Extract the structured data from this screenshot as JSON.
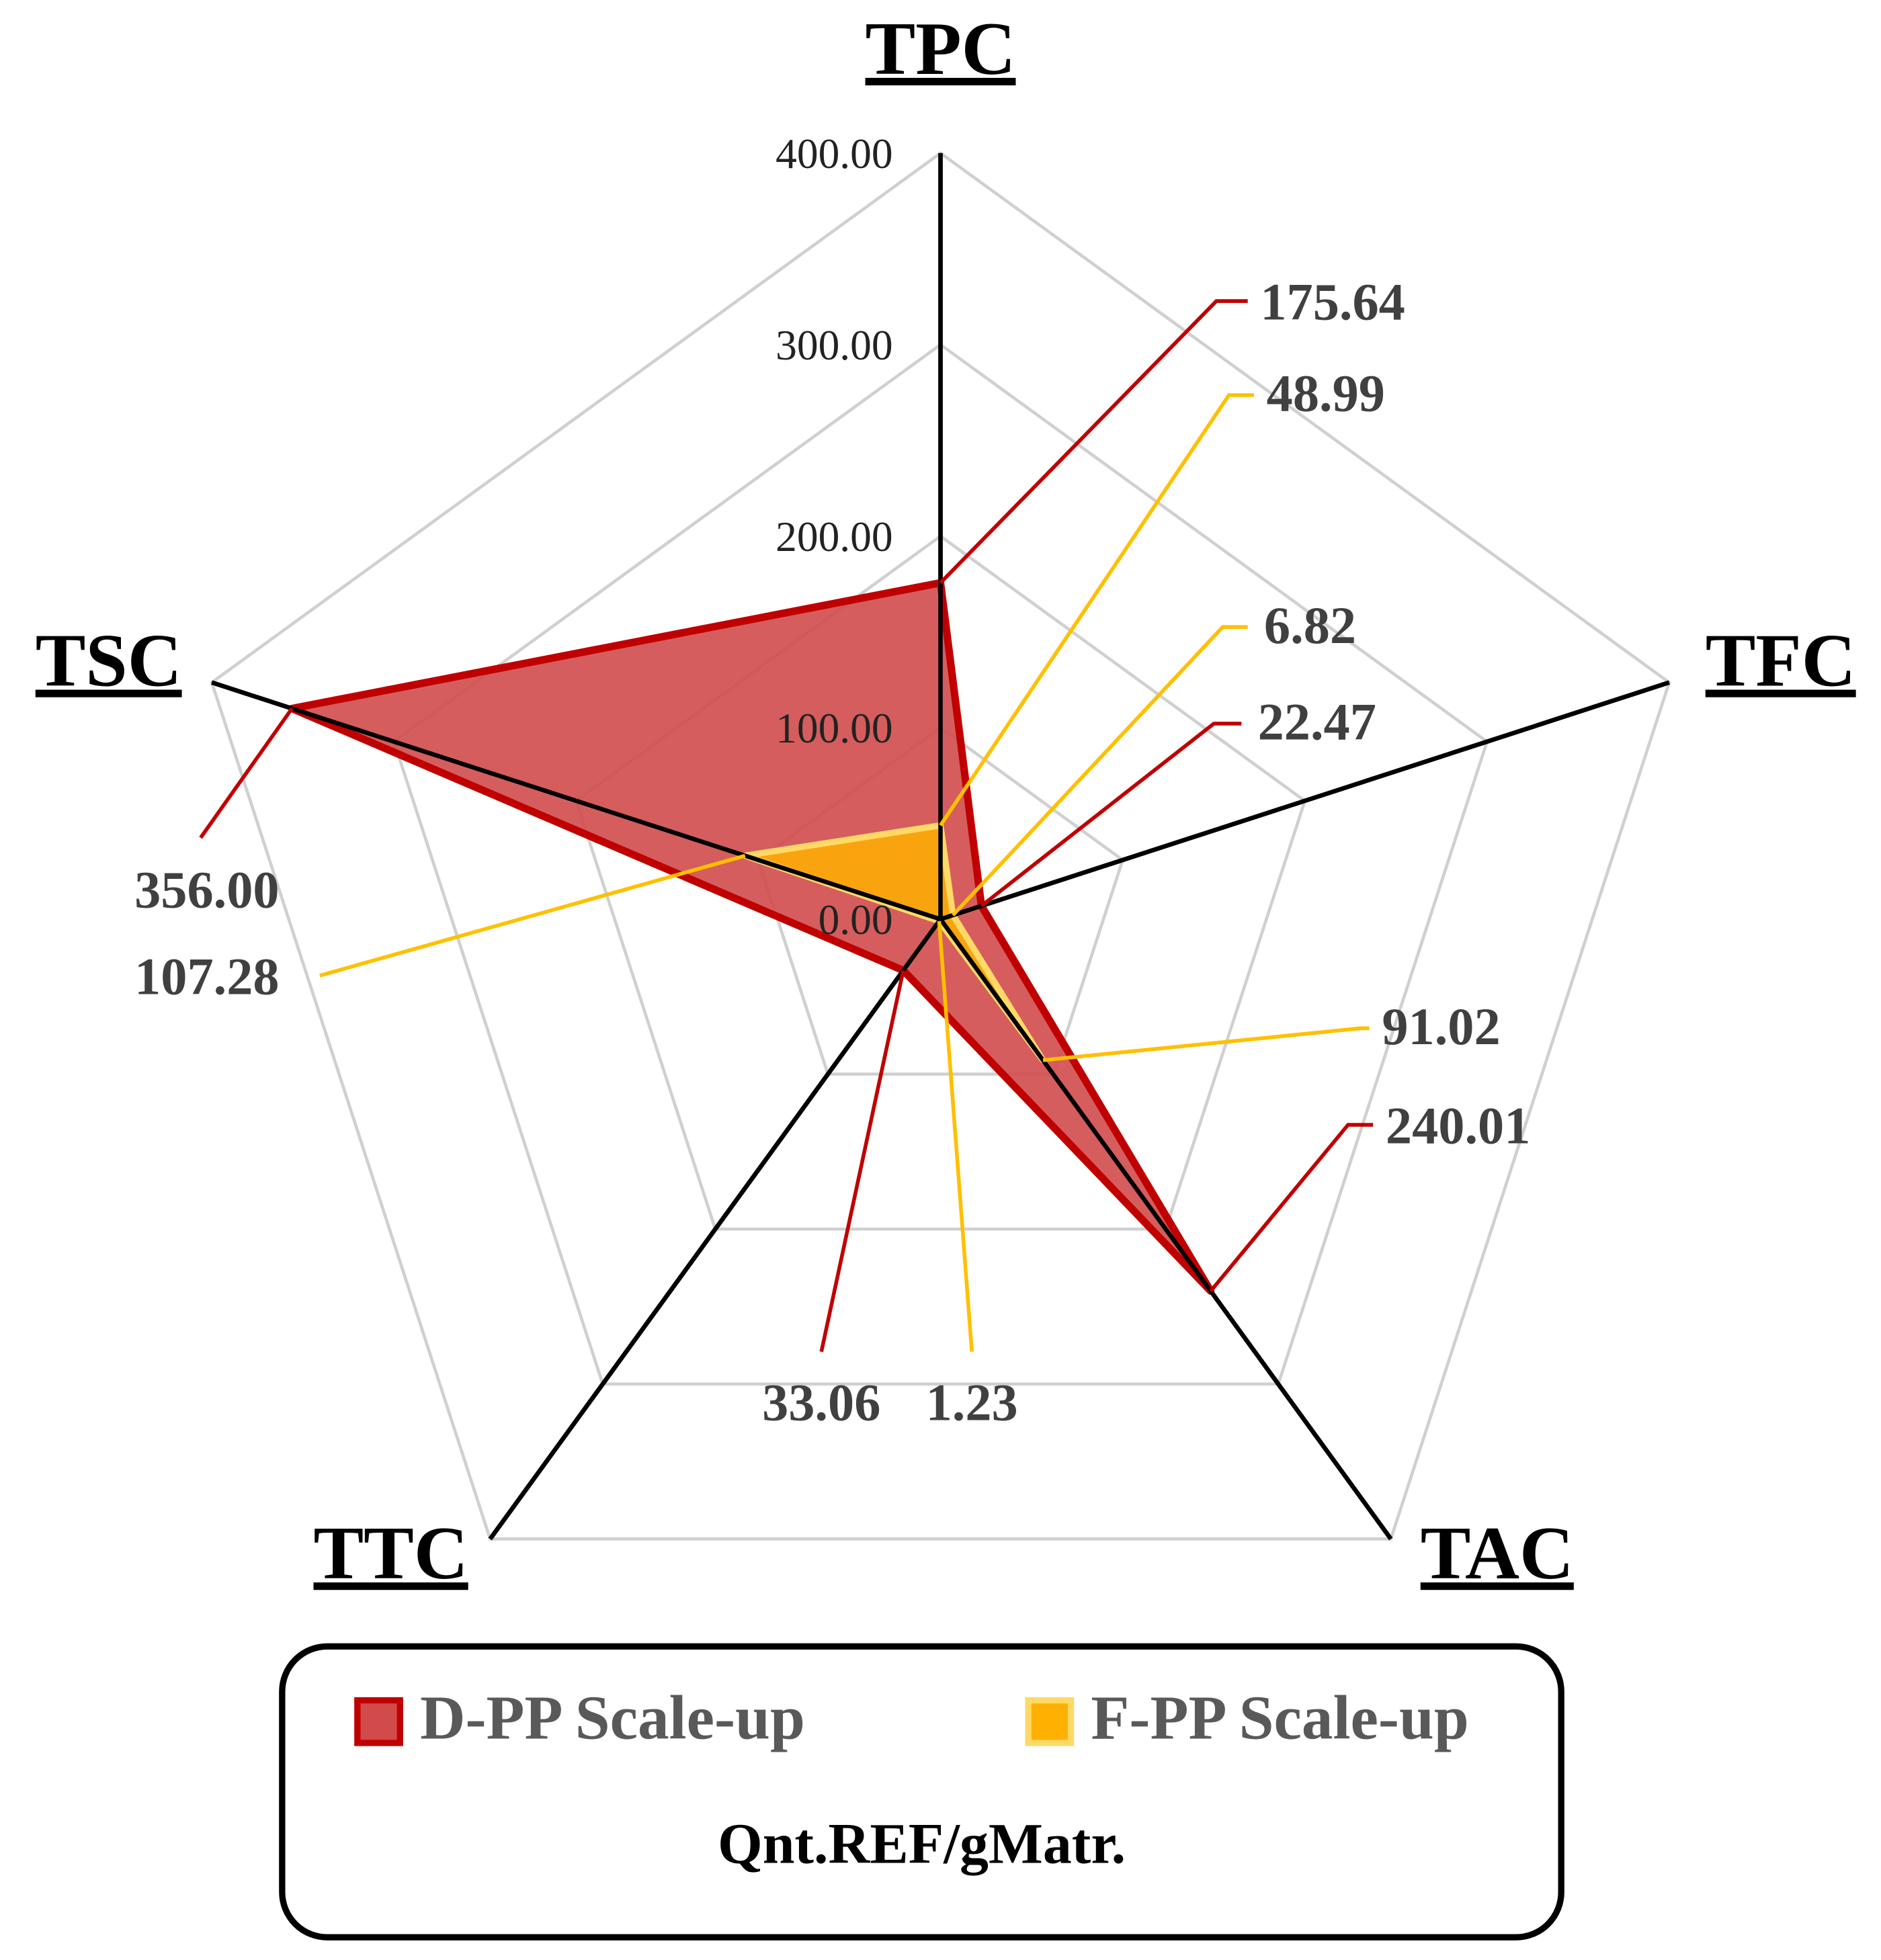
{
  "chart_data": {
    "type": "radar",
    "categories": [
      "TPC",
      "TFC",
      "TAC",
      "TTC",
      "TSC"
    ],
    "series": [
      {
        "name": "D-PP Scale-up",
        "color": "#c00000",
        "fill": "#d24b4b",
        "values": [
          175.64,
          22.47,
          240.01,
          33.06,
          356.0
        ],
        "value_labels": [
          "175.64",
          "22.47",
          "240.01",
          "33.06",
          "356.00"
        ]
      },
      {
        "name": "F-PP Scale-up",
        "color": "#ffc000",
        "fill": "#ffb000",
        "values": [
          48.99,
          6.82,
          91.02,
          1.23,
          107.28
        ],
        "value_labels": [
          "48.99",
          "6.82",
          "91.02",
          "1.23",
          "107.28"
        ]
      }
    ],
    "rlim": [
      0,
      400
    ],
    "rticks": [
      {
        "value": 0,
        "label": "0.00"
      },
      {
        "value": 100,
        "label": "100.00"
      },
      {
        "value": 200,
        "label": "200.00"
      },
      {
        "value": 300,
        "label": "300.00"
      },
      {
        "value": 400,
        "label": "400.00"
      }
    ],
    "grid": true,
    "legend_title": "Qnt.REF/gMatr."
  }
}
